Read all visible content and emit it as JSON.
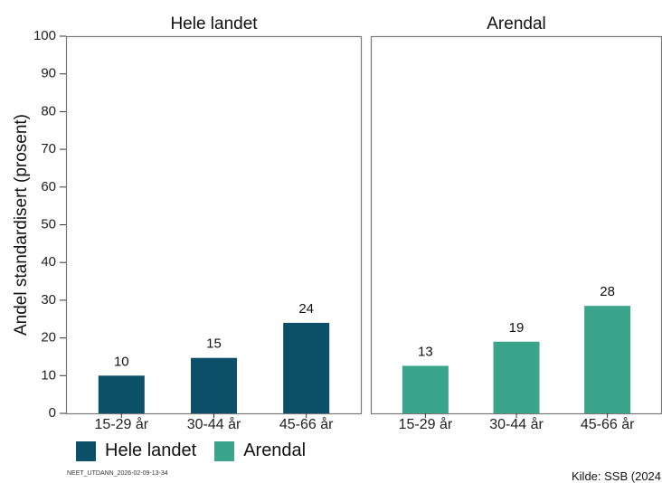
{
  "chart_data": {
    "type": "bar",
    "ylabel": "Andel standardisert (prosent)",
    "ylim": [
      0,
      100
    ],
    "yticks": [
      "0",
      "10",
      "20",
      "30",
      "40",
      "50",
      "60",
      "70",
      "80",
      "90",
      "100"
    ],
    "grid": false,
    "legend_position": "bottom-left",
    "panels": [
      {
        "title": "Hele landet",
        "color": "#0b5068",
        "categories": [
          "15-29 år",
          "30-44 år",
          "45-66 år"
        ],
        "values": [
          10,
          14.7,
          24
        ],
        "labels": [
          "10",
          "15",
          "24"
        ]
      },
      {
        "title": "Arendal",
        "color": "#3aa58a",
        "categories": [
          "15-29 år",
          "30-44 år",
          "45-66 år"
        ],
        "values": [
          12.6,
          19,
          28.5
        ],
        "labels": [
          "13",
          "19",
          "28"
        ]
      }
    ]
  },
  "legend": {
    "items": [
      {
        "label": "Hele landet",
        "color": "#0b5068"
      },
      {
        "label": "Arendal",
        "color": "#3aa58a"
      }
    ]
  },
  "footer": {
    "left": "NEET_UTDANN_2026-02-09-13-34",
    "right": "Kilde: SSB (2024"
  }
}
